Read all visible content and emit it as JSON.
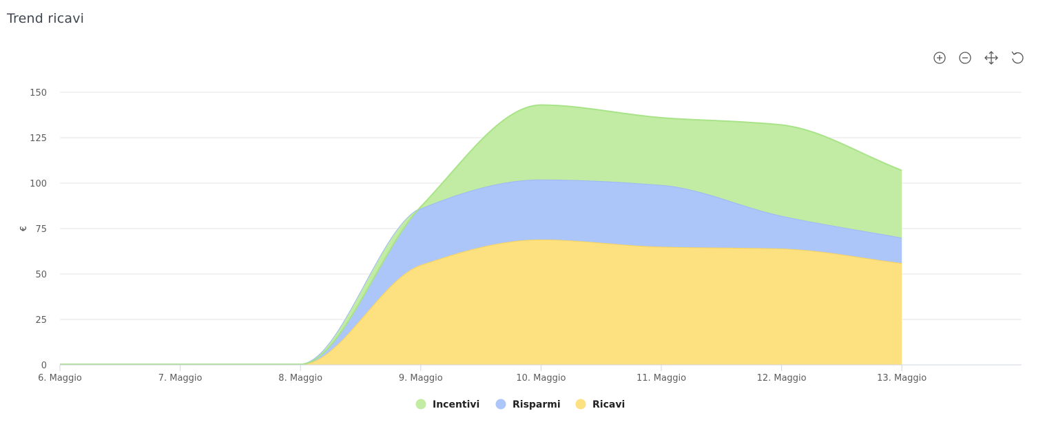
{
  "header": {
    "title": "Trend ricavi"
  },
  "toolbar": [
    {
      "name": "zoom-in-icon"
    },
    {
      "name": "zoom-out-icon"
    },
    {
      "name": "pan-icon"
    },
    {
      "name": "reset-icon"
    }
  ],
  "chart_data": {
    "type": "area",
    "stacked": true,
    "title": "",
    "xlabel": "",
    "ylabel": "€",
    "x": [
      "6. Maggio",
      "7. Maggio",
      "8. Maggio",
      "9. Maggio",
      "10. Maggio",
      "11. Maggio",
      "12. Maggio",
      "13. Maggio"
    ],
    "ylim": [
      0,
      150
    ],
    "yticks": [
      0,
      25,
      50,
      75,
      100,
      125,
      150
    ],
    "grid": true,
    "legend": "bottom-center",
    "series": [
      {
        "name": "Ricavi",
        "color": "#fde07f",
        "stroke": "#f6d35f",
        "values": [
          0.3,
          0.3,
          0.3,
          55,
          69,
          65,
          64,
          56
        ]
      },
      {
        "name": "Risparmi",
        "color": "#adc6fa",
        "stroke": "#9bb8f5",
        "values": [
          0,
          0,
          0,
          31,
          33,
          34,
          18,
          14
        ]
      },
      {
        "name": "Incentivi",
        "color": "#c2eca4",
        "stroke": "#a9e388",
        "values": [
          0,
          0,
          0,
          1,
          41,
          37,
          50,
          37
        ]
      }
    ],
    "legend_order": [
      "Incentivi",
      "Risparmi",
      "Ricavi"
    ]
  }
}
